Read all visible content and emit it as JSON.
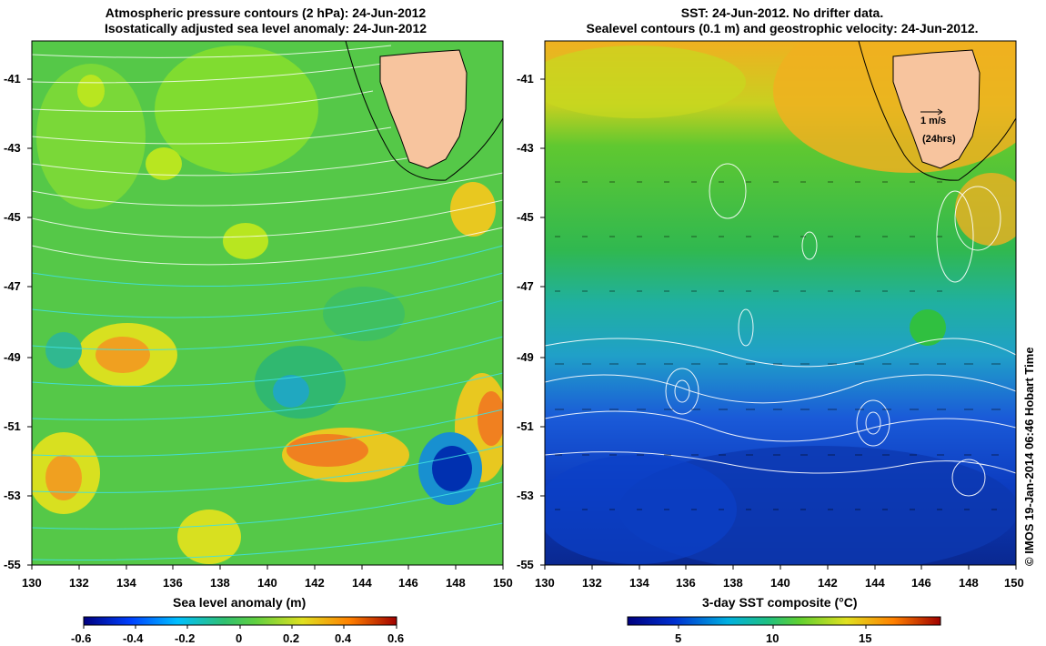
{
  "left_panel": {
    "title_line1": "Atmospheric pressure contours (2 hPa): 24-Jun-2012",
    "title_line2": "Isostatically adjusted sea level anomaly: 24-Jun-2012",
    "xlabel": "Sea level anomaly (m)",
    "colorbar_ticks": [
      "-0.6",
      "-0.4",
      "-0.2",
      "0",
      "0.2",
      "0.4",
      "0.6"
    ]
  },
  "right_panel": {
    "title_line1": "SST: 24-Jun-2012. No drifter data.",
    "title_line2": "Sealevel contours (0.1 m) and geostrophic velocity: 24-Jun-2012.",
    "xlabel": "3-day SST composite (°C)",
    "colorbar_ticks": [
      "5",
      "10",
      "15"
    ],
    "scale_arrow_label1": "1 m/s",
    "scale_arrow_label2": "(24hrs)"
  },
  "axes": {
    "lon_ticks": [
      "130",
      "132",
      "134",
      "136",
      "138",
      "140",
      "142",
      "144",
      "146",
      "148",
      "150"
    ],
    "lat_ticks": [
      "-41",
      "-43",
      "-45",
      "-47",
      "-49",
      "-51",
      "-53",
      "-55"
    ]
  },
  "credit": "© IMOS 19-Jan-2014 06:46 Hobart Time",
  "colors": {
    "land": "#f7c49e",
    "sla_base": "#55c848",
    "sst_warm": "#f0b020",
    "sst_cold": "#0c3cc0"
  }
}
